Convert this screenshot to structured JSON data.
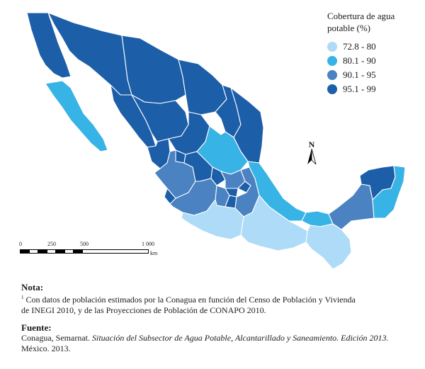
{
  "legend": {
    "title_line1": "Cobertura de agua",
    "title_line2": "potable (%)",
    "items": [
      {
        "label": "72.8 - 80",
        "color": "#aedbf7"
      },
      {
        "label": "80.1 - 90",
        "color": "#38b3e6"
      },
      {
        "label": "90.1 - 95",
        "color": "#4a82c2"
      },
      {
        "label": "95.1 - 99",
        "color": "#1c5ea8"
      }
    ]
  },
  "north_arrow": {
    "label": "N"
  },
  "scale": {
    "ticks": [
      "0",
      "250",
      "500",
      "1 000"
    ],
    "unit": "km"
  },
  "note": {
    "heading": "Nota:",
    "marker": "1",
    "line1": " Con datos de población estimados por la Conagua en función del Censo de Población y Vivienda",
    "line2": "de INEGI 2010, y de las Proyecciones de Población de CONAPO 2010."
  },
  "source": {
    "heading": "Fuente:",
    "publisher": "Conagua, Semarnat. ",
    "title_italic": "Situación del Subsector de Agua Potable, Alcantarillado y Saneamiento. Edición 2013.",
    "tail": " México. 2013."
  }
}
